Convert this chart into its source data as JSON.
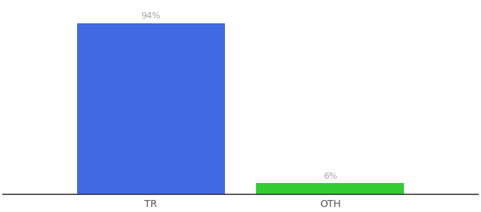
{
  "categories": [
    "TR",
    "OTH"
  ],
  "values": [
    94,
    6
  ],
  "bar_colors": [
    "#4169e1",
    "#33cc33"
  ],
  "label_texts": [
    "94%",
    "6%"
  ],
  "background_color": "#ffffff",
  "ylim": [
    0,
    105
  ],
  "bar_width": 0.28,
  "xlabel_fontsize": 10,
  "label_fontsize": 9,
  "label_color": "#aaaaaa",
  "spine_color": "#333333",
  "x_positions": [
    0.28,
    0.62
  ]
}
